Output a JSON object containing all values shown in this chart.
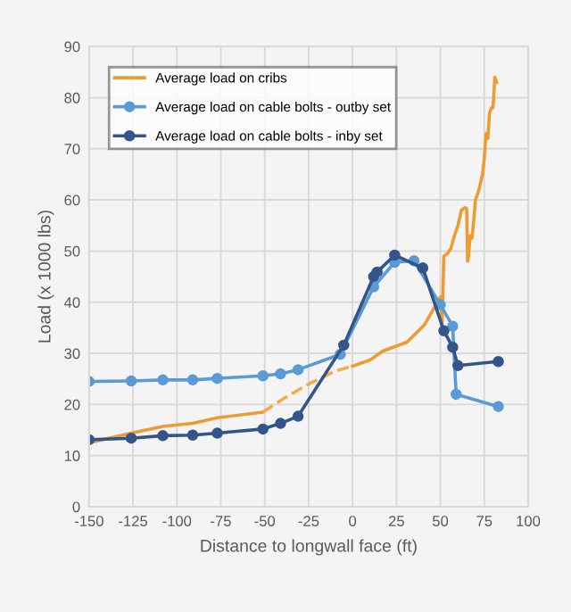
{
  "chart_data": {
    "type": "line",
    "xlabel": "Distance to longwall face (ft)",
    "ylabel": "Load (x 1000 lbs)",
    "xlim": [
      -150,
      100
    ],
    "xticks": [
      -150,
      -125,
      -100,
      -75,
      -50,
      -25,
      0,
      25,
      50,
      75,
      100
    ],
    "ylim": [
      0,
      90
    ],
    "yticks": [
      0,
      10,
      20,
      30,
      40,
      50,
      60,
      70,
      80,
      90
    ],
    "grid": true,
    "legend": "top left",
    "series": [
      {
        "name": "Average load on cribs",
        "color": "#ed9b33",
        "marker": "none",
        "line_style": "solid",
        "x": [
          -150,
          -126,
          -108,
          -91,
          -77,
          -51,
          null,
          0,
          10,
          17,
          31,
          41,
          50,
          51,
          52,
          54,
          56,
          58,
          60,
          62,
          64,
          65,
          65.5,
          66,
          67,
          68,
          69,
          70,
          72,
          74,
          75,
          76,
          77,
          78,
          79,
          80,
          81,
          82
        ],
        "values": [
          12.5,
          14.4,
          15.7,
          16.3,
          17.4,
          18.5,
          null,
          27.5,
          28.7,
          30.4,
          32.2,
          35.6,
          41,
          36,
          49,
          49.5,
          50.5,
          53,
          55,
          58,
          58.5,
          58.2,
          48,
          49,
          53,
          52.5,
          56,
          60,
          62,
          65,
          68,
          73,
          72,
          77,
          78,
          78,
          84,
          83
        ]
      },
      {
        "color": "#f4ab4c",
        "marker": "none",
        "line_style": "dashed",
        "x": [
          -51,
          -40,
          -25,
          -10,
          0
        ],
        "values": [
          18.5,
          21,
          24,
          26.5,
          27.5
        ]
      },
      {
        "name": "Average load on cable bolts - outby set",
        "color": "#5b9bd5",
        "marker": "circle",
        "line_style": "solid",
        "x": [
          -150,
          -126,
          -108,
          -91,
          -77,
          -51,
          -41,
          -31,
          -7,
          12,
          24,
          35,
          50,
          57,
          59,
          83
        ],
        "values": [
          24.5,
          24.6,
          24.8,
          24.8,
          25.1,
          25.6,
          26,
          26.8,
          29.8,
          43,
          47.8,
          48.1,
          39.5,
          35.3,
          22,
          19.6
        ]
      },
      {
        "name": "Average load on cable bolts - inby set",
        "color": "#34558a",
        "marker": "circle",
        "line_style": "solid",
        "x": [
          -150,
          -126,
          -108,
          -91,
          -77,
          -51,
          -41,
          -31,
          -5,
          12,
          14,
          24,
          40,
          52,
          57,
          60,
          83
        ],
        "values": [
          13.1,
          13.4,
          13.9,
          14,
          14.4,
          15.2,
          16.3,
          17.7,
          31.6,
          45,
          45.9,
          49.2,
          46.7,
          34.4,
          31.2,
          27.6,
          28.4
        ]
      }
    ]
  }
}
